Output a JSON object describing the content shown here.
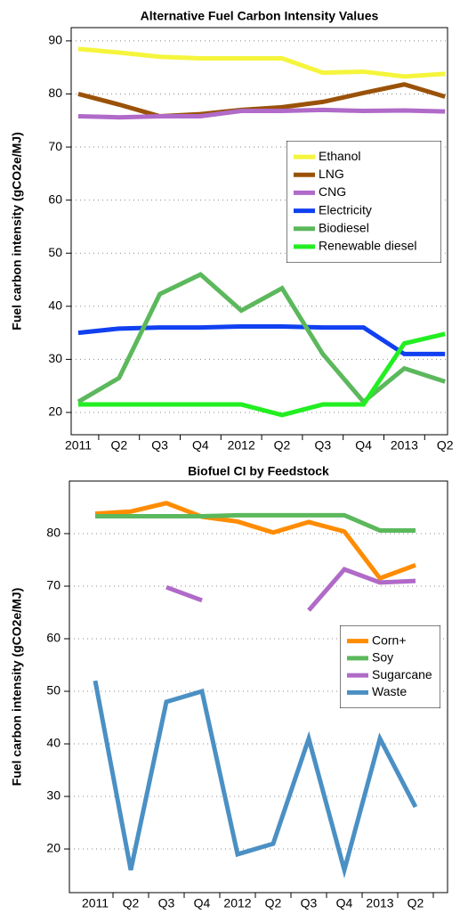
{
  "chart_data": [
    {
      "type": "line",
      "title": "Alternative Fuel Carbon Intensity Values",
      "y_label": "Fuel carbon intensity (gCO2e/MJ)",
      "categories": [
        "2011",
        "Q2",
        "Q3",
        "Q4",
        "2012",
        "Q2",
        "Q3",
        "Q4",
        "2013",
        "Q2"
      ],
      "series": [
        {
          "name": "Ethanol",
          "color": "#f5f53c",
          "values": [
            88.5,
            87.8,
            87,
            86.7,
            86.7,
            86.7,
            84,
            84.2,
            83.3,
            83.8
          ]
        },
        {
          "name": "LNG",
          "color": "#9a5208",
          "values": [
            80,
            78,
            75.8,
            76.2,
            77,
            77.5,
            78.5,
            80.2,
            81.8,
            79.5
          ]
        },
        {
          "name": "CNG",
          "color": "#b06ac8",
          "values": [
            75.8,
            75.6,
            75.8,
            75.8,
            76.8,
            76.8,
            77,
            76.8,
            76.9,
            76.7
          ]
        },
        {
          "name": "Electricity",
          "color": "#1040f0",
          "values": [
            35,
            35.8,
            36,
            36,
            36.2,
            36.2,
            36,
            36,
            31,
            31
          ]
        },
        {
          "name": "Biodiesel",
          "color": "#5cb85c",
          "values": [
            22,
            26.5,
            42.3,
            46,
            39.2,
            43.4,
            31,
            22,
            28.3,
            25.8
          ]
        },
        {
          "name": "Renewable diesel",
          "color": "#22ee22",
          "values": [
            21.5,
            21.5,
            21.5,
            21.5,
            21.5,
            19.5,
            21.5,
            21.5,
            33,
            34.8
          ]
        }
      ],
      "ylim": [
        15.8,
        92.5
      ],
      "yticks": [
        20,
        30,
        40,
        50,
        60,
        70,
        80,
        90
      ],
      "grid": true
    },
    {
      "type": "line",
      "title": "Biofuel CI by Feedstock",
      "y_label": "Fuel carbon intensity (gCO2e/MJ)",
      "categories": [
        "2011",
        "Q2",
        "Q3",
        "Q4",
        "2012",
        "Q2",
        "Q3",
        "Q4",
        "2013",
        "Q2"
      ],
      "series": [
        {
          "name": "Corn+",
          "color": "#ff8c00",
          "values": [
            83.8,
            84.2,
            85.8,
            83.2,
            82.3,
            80.2,
            82.2,
            80.4,
            71.5,
            74
          ]
        },
        {
          "name": "Soy",
          "color": "#5cb85c",
          "values": [
            83.3,
            83.3,
            83.3,
            83.3,
            83.5,
            83.5,
            83.5,
            83.5,
            80.6,
            80.6
          ]
        },
        {
          "name": "Sugarcane",
          "color": "#b06ac8",
          "values": [
            null,
            null,
            69.8,
            67.3,
            null,
            null,
            65.4,
            73.2,
            70.7,
            71
          ]
        },
        {
          "name": "Waste",
          "color": "#4a90c4",
          "values": [
            52,
            16,
            48,
            50,
            19,
            21,
            41,
            16,
            41,
            28
          ]
        }
      ],
      "ylim": [
        11.7,
        90
      ],
      "yticks": [
        20,
        30,
        40,
        50,
        60,
        70,
        80
      ],
      "grid": true
    }
  ]
}
